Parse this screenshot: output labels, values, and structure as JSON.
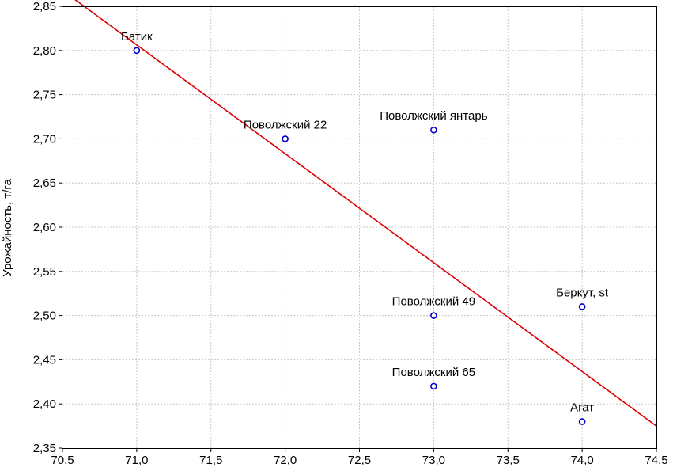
{
  "chart_data": {
    "type": "scatter",
    "title": "",
    "xlabel": "",
    "ylabel": "Урожайность, т/га",
    "xlim": [
      70.5,
      74.5
    ],
    "ylim": [
      2.35,
      2.85
    ],
    "x_ticks": [
      "70,5",
      "71,0",
      "71,5",
      "72,0",
      "72,5",
      "73,0",
      "73,5",
      "74,0",
      "74,5"
    ],
    "y_ticks": [
      "2,35",
      "2,40",
      "2,45",
      "2,50",
      "2,55",
      "2,60",
      "2,65",
      "2,70",
      "2,75",
      "2,80",
      "2,85"
    ],
    "grid": true,
    "points": [
      {
        "label": "Батик",
        "x": 71.0,
        "y": 2.8
      },
      {
        "label": "Поволжский 22",
        "x": 72.0,
        "y": 2.7
      },
      {
        "label": "Поволжский янтарь",
        "x": 73.0,
        "y": 2.71
      },
      {
        "label": "Поволжский 49",
        "x": 73.0,
        "y": 2.5
      },
      {
        "label": "Поволжский 65",
        "x": 73.0,
        "y": 2.42
      },
      {
        "label": "Беркут, st",
        "x": 74.0,
        "y": 2.51
      },
      {
        "label": "Агат",
        "x": 74.0,
        "y": 2.38
      }
    ],
    "trendline": {
      "x": [
        70.5,
        74.5
      ],
      "y": [
        2.868,
        2.375
      ]
    },
    "colors": {
      "points": "#0000cc",
      "trendline": "#dd0000",
      "grid": "#c8c8c8",
      "axes": "#000000"
    }
  }
}
